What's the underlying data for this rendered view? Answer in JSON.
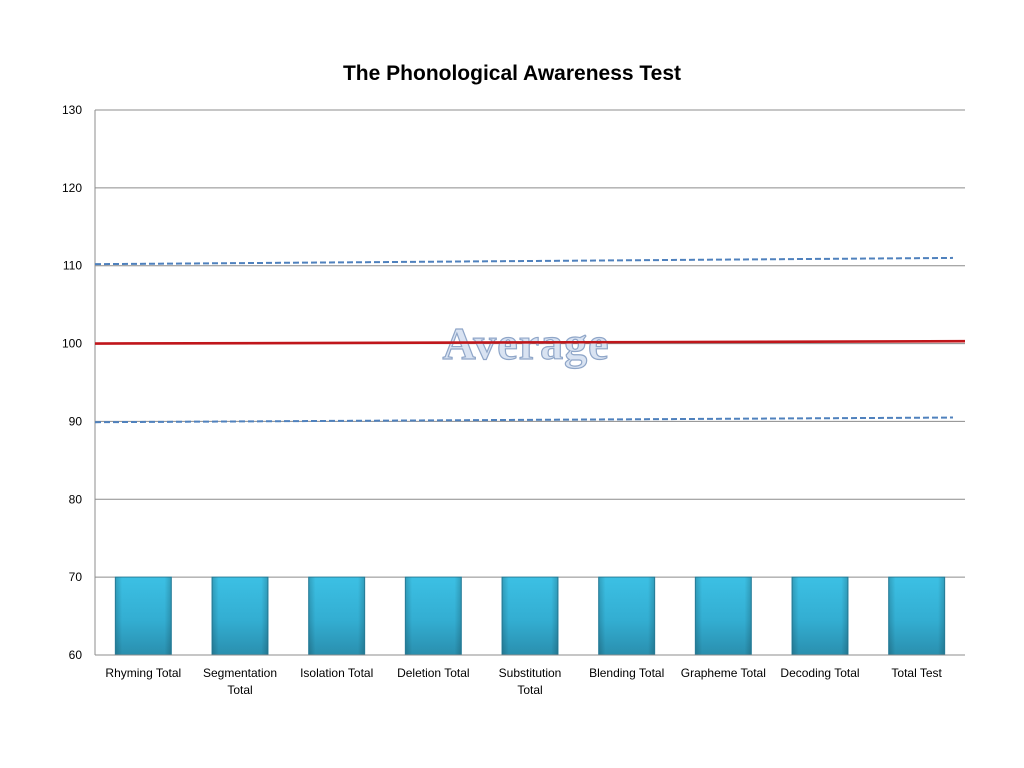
{
  "chart_data": {
    "type": "bar",
    "title": "The Phonological Awareness Test",
    "xlabel": "",
    "ylabel": "",
    "ylim": [
      60,
      130
    ],
    "yticks": [
      "60",
      "70",
      "80",
      "90",
      "100",
      "110",
      "120",
      "130"
    ],
    "grid": true,
    "categories": [
      [
        "Rhyming Total"
      ],
      [
        "Segmentation",
        "Total"
      ],
      [
        "Isolation Total"
      ],
      [
        "Deletion Total"
      ],
      [
        "Substitution",
        "Total"
      ],
      [
        "Blending Total"
      ],
      [
        "Grapheme Total"
      ],
      [
        "Decoding Total"
      ],
      [
        "Total Test"
      ]
    ],
    "values": [
      70,
      70,
      70,
      70,
      70,
      70,
      70,
      70,
      70
    ],
    "reference_lines": [
      {
        "style": "solid",
        "color": "#c0161b",
        "y_start": 100,
        "y_end": 100.3
      },
      {
        "style": "dashed",
        "color": "#4f81bd",
        "y_start": 110.2,
        "y_end": 111
      },
      {
        "style": "dashed",
        "color": "#4f81bd",
        "y_start": 89.9,
        "y_end": 90.5
      }
    ],
    "annotation": "Average",
    "colors": {
      "bar_top": "#3cc0e4",
      "bar_bottom": "#2a8fae",
      "grid": "#8c8c8c",
      "axis": "#8c8c8c"
    }
  }
}
